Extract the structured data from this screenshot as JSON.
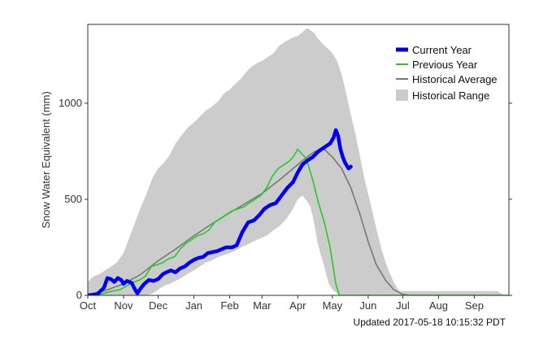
{
  "chart_data": {
    "type": "line",
    "xlabel": "",
    "ylabel": "Snow Water Equivalent (mm)",
    "x_unit": "day of water year (0 = Oct 1)",
    "xlim": [
      0,
      365
    ],
    "ylim": [
      0,
      1410
    ],
    "x_tick_labels": [
      "Oct",
      "Nov",
      "Dec",
      "Jan",
      "Feb",
      "Mar",
      "Apr",
      "May",
      "Jun",
      "Jul",
      "Aug",
      "Sep"
    ],
    "x_tick_positions": [
      0,
      31,
      61,
      92,
      123,
      151,
      182,
      212,
      243,
      273,
      304,
      335
    ],
    "y_ticks": [
      0,
      500,
      1000
    ],
    "y_tick_labels": [
      "0",
      "500",
      "1000"
    ],
    "grid": false,
    "legend_position": "top-right",
    "legend": {
      "current": "Current Year",
      "previous": "Previous Year",
      "average": "Historical Average",
      "range": "Historical Range"
    },
    "footer": "Updated 2017-05-18 10:15:32 PDT",
    "series": [
      {
        "name": "Current Year",
        "color": "#0000ee",
        "style": "thick-line",
        "x": [
          0,
          8,
          14,
          17,
          20,
          23,
          26,
          29,
          31,
          34,
          38,
          41,
          43,
          45,
          49,
          53,
          57,
          61,
          65,
          68,
          72,
          76,
          80,
          84,
          86,
          88,
          92,
          96,
          100,
          104,
          108,
          112,
          116,
          120,
          125,
          129,
          134,
          139,
          144,
          149,
          153,
          158,
          163,
          168,
          173,
          178,
          182,
          186,
          190,
          195,
          200,
          205,
          210,
          212,
          213,
          215,
          217,
          219,
          221,
          223,
          226,
          228
        ],
        "y": [
          0,
          5,
          40,
          90,
          85,
          70,
          90,
          80,
          60,
          75,
          65,
          30,
          10,
          30,
          60,
          80,
          75,
          85,
          110,
          120,
          130,
          120,
          140,
          150,
          160,
          170,
          185,
          195,
          200,
          220,
          225,
          230,
          240,
          250,
          250,
          260,
          330,
          380,
          390,
          420,
          450,
          470,
          480,
          520,
          560,
          590,
          640,
          680,
          700,
          720,
          750,
          770,
          790,
          810,
          820,
          860,
          830,
          760,
          720,
          690,
          660,
          670
        ]
      },
      {
        "name": "Previous Year",
        "color": "#22cc22",
        "style": "line",
        "x": [
          0,
          10,
          20,
          28,
          31,
          40,
          45,
          50,
          55,
          60,
          65,
          70,
          75,
          80,
          85,
          90,
          95,
          100,
          105,
          110,
          115,
          120,
          125,
          130,
          135,
          140,
          145,
          150,
          155,
          160,
          165,
          170,
          175,
          178,
          180,
          182,
          185,
          188,
          190,
          195,
          200,
          205,
          210,
          215,
          218,
          219,
          240,
          270,
          300,
          330,
          365
        ],
        "y": [
          0,
          5,
          20,
          30,
          40,
          70,
          80,
          100,
          150,
          160,
          170,
          190,
          200,
          240,
          270,
          290,
          310,
          320,
          340,
          380,
          400,
          420,
          440,
          450,
          460,
          480,
          500,
          520,
          560,
          620,
          660,
          680,
          700,
          720,
          740,
          760,
          740,
          720,
          700,
          600,
          480,
          380,
          250,
          60,
          0,
          0,
          0,
          0,
          0,
          0,
          0
        ]
      },
      {
        "name": "Historical Average",
        "color": "#777777",
        "style": "line",
        "x": [
          0,
          15,
          31,
          46,
          61,
          76,
          92,
          107,
          123,
          137,
          151,
          166,
          182,
          190,
          197,
          205,
          212,
          220,
          228,
          236,
          243,
          250,
          258,
          265,
          273,
          280,
          300,
          330,
          365
        ],
        "y": [
          5,
          25,
          60,
          110,
          180,
          240,
          310,
          370,
          430,
          480,
          530,
          600,
          680,
          720,
          750,
          760,
          720,
          660,
          560,
          420,
          280,
          160,
          80,
          30,
          5,
          0,
          0,
          0,
          0
        ]
      },
      {
        "name": "Historical Range",
        "color": "#cccccc",
        "style": "band",
        "x": [
          0,
          5,
          10,
          15,
          20,
          25,
          31,
          36,
          41,
          46,
          51,
          56,
          61,
          66,
          71,
          76,
          81,
          86,
          92,
          97,
          102,
          107,
          113,
          118,
          123,
          128,
          133,
          137,
          142,
          147,
          151,
          156,
          161,
          166,
          171,
          177,
          182,
          186,
          190,
          193,
          195,
          197,
          199,
          202,
          205,
          207,
          209,
          212,
          216,
          220,
          224,
          228,
          232,
          236,
          240,
          245,
          250,
          255,
          260,
          265,
          268,
          270,
          272,
          274,
          276,
          280,
          300,
          330,
          355,
          360,
          365
        ],
        "upper": [
          70,
          100,
          110,
          130,
          150,
          170,
          220,
          300,
          380,
          460,
          530,
          610,
          660,
          690,
          730,
          790,
          830,
          870,
          900,
          930,
          960,
          980,
          1010,
          1050,
          1070,
          1100,
          1130,
          1160,
          1190,
          1210,
          1220,
          1240,
          1260,
          1300,
          1320,
          1340,
          1350,
          1370,
          1390,
          1380,
          1370,
          1360,
          1340,
          1320,
          1300,
          1290,
          1280,
          1260,
          1220,
          1150,
          1050,
          940,
          840,
          720,
          600,
          480,
          350,
          230,
          140,
          70,
          40,
          25,
          22,
          22,
          22,
          22,
          22,
          22,
          22,
          5,
          0
        ],
        "lower": [
          0,
          0,
          0,
          0,
          0,
          0,
          0,
          0,
          0,
          0,
          0,
          10,
          30,
          50,
          60,
          75,
          90,
          110,
          130,
          150,
          170,
          180,
          200,
          210,
          220,
          235,
          250,
          260,
          275,
          290,
          300,
          315,
          340,
          360,
          390,
          440,
          500,
          520,
          490,
          460,
          410,
          350,
          280,
          210,
          150,
          100,
          60,
          30,
          10,
          0,
          0,
          0,
          0,
          0,
          0,
          0,
          0,
          0,
          0,
          0,
          0,
          0,
          0,
          0,
          0,
          0,
          0,
          0,
          0,
          0,
          0
        ]
      }
    ]
  }
}
